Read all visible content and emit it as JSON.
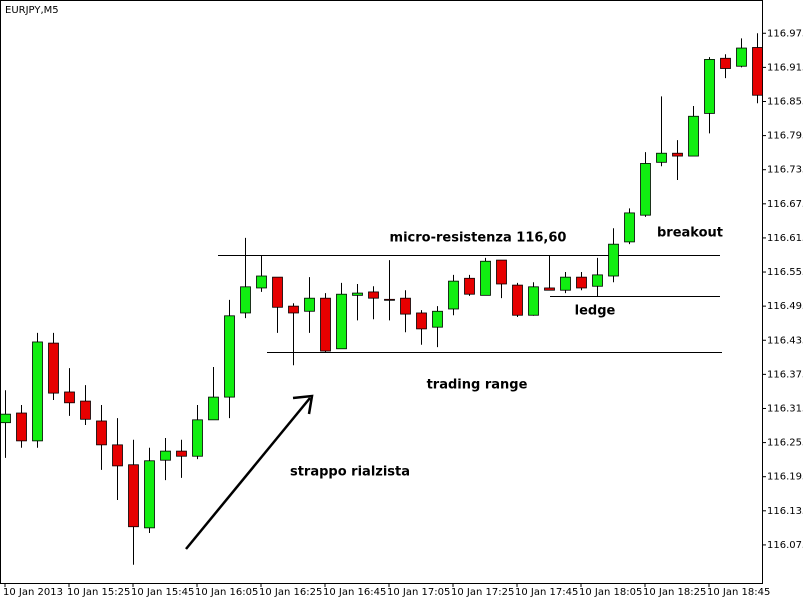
{
  "chart_data": {
    "type": "candlestick",
    "title": "EURJPY,M5",
    "categories": [
      "10 Jan 2013",
      null,
      null,
      null,
      "10 Jan 15:25",
      null,
      null,
      null,
      "10 Jan 15:45",
      null,
      null,
      null,
      "10 Jan 16:05",
      null,
      null,
      null,
      "10 Jan 16:25",
      null,
      null,
      null,
      "10 Jan 16:45",
      null,
      null,
      null,
      "10 Jan 17:05",
      null,
      null,
      null,
      "10 Jan 17:25",
      null,
      null,
      null,
      "10 Jan 17:45",
      null,
      null,
      null,
      "10 Jan 18:05",
      null,
      null,
      null,
      "10 Jan 18:25",
      null,
      null,
      null,
      "10 Jan 18:45",
      null,
      null,
      null
    ],
    "open": [
      116.29,
      116.307,
      116.258,
      116.43,
      116.344,
      116.328,
      116.293,
      116.251,
      116.216,
      116.105,
      116.224,
      116.24,
      116.231,
      116.295,
      116.335,
      116.483,
      116.527,
      116.546,
      116.495,
      116.486,
      116.509,
      116.42,
      116.514,
      116.52,
      116.507,
      116.509,
      116.483,
      116.458,
      116.49,
      116.544,
      116.514,
      116.576,
      116.532,
      116.479,
      116.527,
      116.523,
      116.546,
      116.53,
      116.548,
      116.608,
      116.655,
      116.748,
      116.764,
      116.759,
      116.834,
      116.931,
      116.917,
      116.95
    ],
    "high": [
      116.347,
      116.321,
      116.448,
      116.448,
      116.386,
      116.356,
      116.321,
      116.298,
      116.26,
      116.246,
      116.263,
      116.26,
      116.321,
      116.388,
      116.506,
      116.615,
      116.585,
      116.546,
      116.5,
      116.546,
      116.518,
      116.536,
      116.534,
      116.53,
      116.576,
      116.523,
      116.488,
      116.495,
      116.55,
      116.55,
      116.58,
      116.576,
      116.536,
      116.537,
      116.585,
      116.555,
      116.555,
      116.58,
      116.632,
      116.667,
      116.766,
      116.864,
      116.787,
      116.847,
      116.933,
      116.938,
      116.966,
      116.975
    ],
    "low": [
      116.228,
      116.246,
      116.246,
      116.33,
      116.302,
      116.286,
      116.207,
      116.154,
      116.04,
      116.096,
      116.189,
      116.193,
      116.226,
      116.295,
      116.298,
      116.474,
      116.52,
      116.448,
      116.391,
      116.448,
      116.414,
      116.42,
      116.47,
      116.472,
      116.47,
      116.449,
      116.427,
      116.423,
      116.479,
      116.513,
      116.514,
      116.509,
      116.476,
      116.478,
      116.523,
      116.518,
      116.523,
      116.511,
      116.537,
      116.604,
      116.652,
      116.741,
      116.717,
      116.759,
      116.799,
      116.896,
      116.915,
      116.852
    ],
    "close": [
      116.305,
      116.258,
      116.432,
      116.342,
      116.325,
      116.296,
      116.251,
      116.214,
      116.107,
      116.223,
      116.24,
      116.231,
      116.295,
      116.335,
      116.478,
      116.529,
      116.548,
      116.493,
      116.483,
      116.509,
      116.416,
      116.516,
      116.518,
      116.509,
      116.506,
      116.481,
      116.455,
      116.486,
      116.539,
      116.516,
      116.574,
      116.534,
      116.479,
      116.529,
      116.523,
      116.546,
      116.527,
      116.55,
      116.604,
      116.659,
      116.746,
      116.764,
      116.759,
      116.829,
      116.929,
      116.913,
      116.949,
      116.866
    ],
    "up_color": "#11ee11",
    "down_color": "#e60000",
    "ylim": [
      116.008,
      117.03
    ],
    "yticks": [
      116.075,
      116.135,
      116.195,
      116.255,
      116.315,
      116.375,
      116.435,
      116.495,
      116.555,
      116.615,
      116.675,
      116.735,
      116.795,
      116.855,
      116.915,
      116.975
    ],
    "levels": [
      116.585,
      116.513,
      116.414
    ],
    "annotations": [
      "micro-resistenza 116,60",
      "breakout",
      "ledge",
      "trading range",
      "strappo rialzista"
    ]
  }
}
